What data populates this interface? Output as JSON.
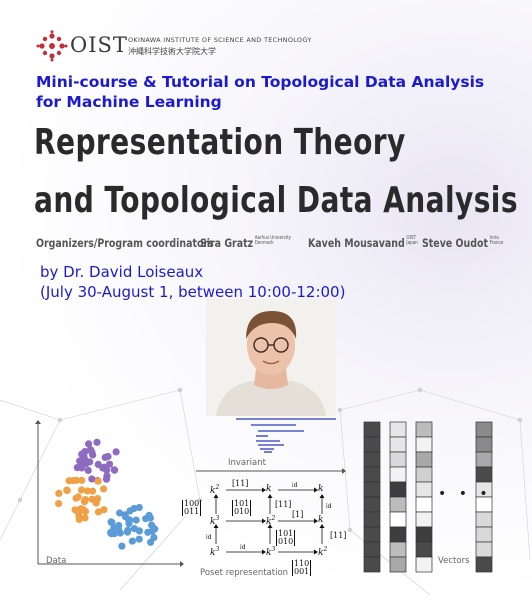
{
  "logo": {
    "name": "OIST",
    "english": "OKINAWA INSTITUTE OF SCIENCE AND TECHNOLOGY",
    "japanese": "沖縄科学技術大学院大学"
  },
  "minicourse": {
    "line1": "Mini-course & Tutorial on Topological Data Analysis",
    "line2": "for Machine Learning"
  },
  "title": {
    "line1": "Representation Theory",
    "line2": "and Topological Data Analysis"
  },
  "organizers": {
    "label": "Organizers/Program coordinators",
    "people": [
      {
        "name": "Sira Gratz",
        "affil_1": "Aarhus University",
        "affil_2": "Denmark"
      },
      {
        "name": "Kaveh Mousavand",
        "affil_1": "OIST",
        "affil_2": "Japan"
      },
      {
        "name": "Steve Oudot",
        "affil_1": "Inria",
        "affil_2": "France"
      }
    ]
  },
  "byline": {
    "speaker": "by Dr. David Loiseaux",
    "schedule": "(July 30-August 1, between 10:00-12:00)"
  },
  "figures": {
    "data_label": "Data",
    "invariant_label": "Invariant",
    "poset_label": "Poset representation",
    "vectors_label": "Vectors",
    "ellipsis": "• • •",
    "diagram": {
      "k": "k",
      "k2": "k",
      "k3": "k",
      "sup2": "2",
      "sup3": "3",
      "id": "id",
      "m_11": "[11]",
      "m_1": "[1]",
      "m_100_011": [
        "100",
        "011"
      ],
      "m_101_010": [
        "101",
        "010"
      ],
      "m_110_001": [
        "110",
        "001"
      ]
    },
    "colors": {
      "purple": "#8e6bc0",
      "orange": "#f0a045",
      "blue": "#5a9bd8",
      "bars": "#2b3bb8"
    }
  }
}
